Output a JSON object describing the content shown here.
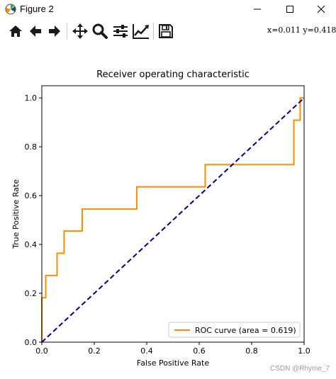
{
  "window": {
    "title": "Figure 2"
  },
  "toolbar": {
    "tools": [
      "home-icon",
      "back-icon",
      "forward-icon",
      "pan-icon",
      "zoom-icon",
      "configure-subplots-icon",
      "edit-axis-icon",
      "save-icon"
    ],
    "coords": "x=0.011  y=0.418"
  },
  "chart_data": {
    "type": "line",
    "title": "Receiver operating characteristic",
    "xlabel": "False Positive Rate",
    "ylabel": "True Positive Rate",
    "xlim": [
      0.0,
      1.0
    ],
    "ylim": [
      0.0,
      1.05
    ],
    "xticks": [
      "0.0",
      "0.2",
      "0.4",
      "0.6",
      "0.8",
      "1.0"
    ],
    "yticks": [
      "0.0",
      "0.2",
      "0.4",
      "0.6",
      "0.8",
      "1.0"
    ],
    "grid": false,
    "legend_position": "lower right",
    "series": [
      {
        "name": "ROC curve (area = 0.619)",
        "color": "#ff8c00",
        "style": "solid",
        "x": [
          0.0,
          0.0,
          0.015,
          0.015,
          0.058,
          0.058,
          0.085,
          0.085,
          0.154,
          0.154,
          0.362,
          0.362,
          0.623,
          0.623,
          0.961,
          0.961,
          0.985,
          0.985,
          1.0
        ],
        "y": [
          0.0,
          0.182,
          0.182,
          0.273,
          0.273,
          0.364,
          0.364,
          0.455,
          0.455,
          0.545,
          0.545,
          0.636,
          0.636,
          0.727,
          0.727,
          0.909,
          0.909,
          1.0,
          1.0
        ]
      },
      {
        "color": "#000080",
        "style": "dashed",
        "x": [
          0.0,
          1.0
        ],
        "y": [
          0.0,
          1.0
        ]
      }
    ]
  },
  "watermark": "CSDN @Rhyme_7"
}
